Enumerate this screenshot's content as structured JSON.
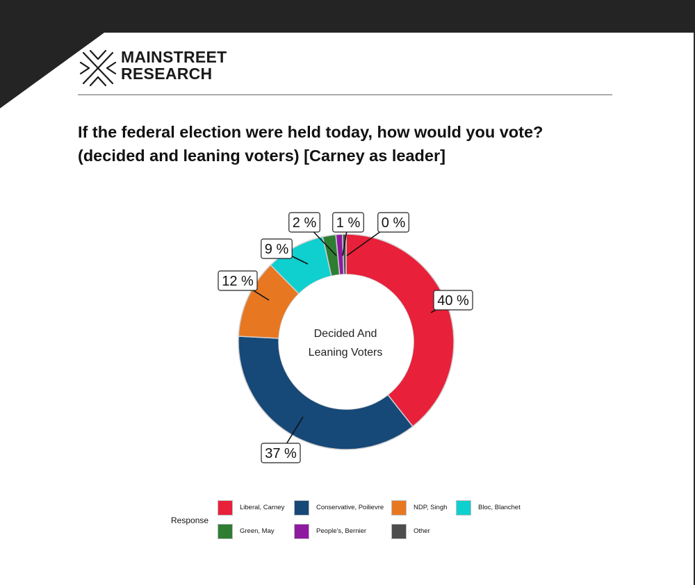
{
  "brand": {
    "line1": "MAINSTREET",
    "line2": "RESEARCH"
  },
  "title": {
    "line1": "If the federal election were held today, how would you vote?",
    "line2": "(decided and leaning voters) [Carney as leader]"
  },
  "chart_data": {
    "type": "pie",
    "style": "donut",
    "center_label": [
      "Decided And",
      "Leaning Voters"
    ],
    "legend_title": "Response",
    "legend_placement": "bottom",
    "labels_suffix": " %",
    "slices": [
      {
        "name": "Liberal, Carney",
        "value": 40,
        "color": "#e8203a"
      },
      {
        "name": "Conservative, Poilievre",
        "value": 37,
        "color": "#164878"
      },
      {
        "name": "NDP, Singh",
        "value": 12,
        "color": "#e87722"
      },
      {
        "name": "Bloc, Blanchet",
        "value": 9,
        "color": "#0fcfcf"
      },
      {
        "name": "Green, May",
        "value": 2,
        "color": "#2e7d32"
      },
      {
        "name": "People's, Bernier",
        "value": 1,
        "color": "#8e1aa0"
      },
      {
        "name": "Other",
        "value": 0,
        "color": "#4d4d4d"
      }
    ]
  }
}
